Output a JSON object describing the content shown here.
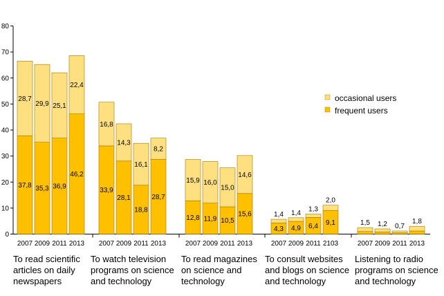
{
  "chart_data": {
    "type": "bar",
    "stacked": true,
    "ylim": [
      0,
      80
    ],
    "yticks": [
      0,
      10,
      20,
      30,
      40,
      50,
      60,
      70,
      80
    ],
    "grid": false,
    "legend_position": "right",
    "series": [
      {
        "name": "frequent users",
        "color": "#FFC000"
      },
      {
        "name": "occasional users",
        "color": "#FFE081"
      }
    ],
    "groups": [
      {
        "label": "To read scientific\narticles on daily\nnewspapers",
        "bars": [
          {
            "year": "2007",
            "frequent": 37.8,
            "occasional": 28.7,
            "frequent_label": "37,8",
            "occasional_label": "28,7"
          },
          {
            "year": "2009",
            "frequent": 35.3,
            "occasional": 29.9,
            "frequent_label": "35,3",
            "occasional_label": "29,9"
          },
          {
            "year": "2011",
            "frequent": 36.9,
            "occasional": 25.1,
            "frequent_label": "36,9",
            "occasional_label": "25,1"
          },
          {
            "year": "2013",
            "frequent": 46.2,
            "occasional": 22.4,
            "frequent_label": "46,2",
            "occasional_label": "22,4"
          }
        ]
      },
      {
        "label": "To watch television\nprograms on science\nand technology",
        "bars": [
          {
            "year": "2007",
            "frequent": 33.9,
            "occasional": 16.8,
            "frequent_label": "33,9",
            "occasional_label": "16,8"
          },
          {
            "year": "2009",
            "frequent": 28.1,
            "occasional": 14.3,
            "frequent_label": "28,1",
            "occasional_label": "14,3"
          },
          {
            "year": "2011",
            "frequent": 18.8,
            "occasional": 16.1,
            "frequent_label": "18,8",
            "occasional_label": "16,1"
          },
          {
            "year": "2013",
            "frequent": 28.7,
            "occasional": 8.2,
            "frequent_label": "28,7",
            "occasional_label": "8,2"
          }
        ]
      },
      {
        "label": "To read magazines\non science and\ntechnology",
        "bars": [
          {
            "year": "2007",
            "frequent": 12.8,
            "occasional": 15.9,
            "frequent_label": "12,8",
            "occasional_label": "15,9"
          },
          {
            "year": "2009",
            "frequent": 11.9,
            "occasional": 16.0,
            "frequent_label": "11,9",
            "occasional_label": "16,0"
          },
          {
            "year": "2011",
            "frequent": 10.5,
            "occasional": 15.0,
            "frequent_label": "10,5",
            "occasional_label": "15,0"
          },
          {
            "year": "2013",
            "frequent": 15.6,
            "occasional": 14.6,
            "frequent_label": "15,6",
            "occasional_label": "14,6"
          }
        ]
      },
      {
        "label": "To consult websites\nand blogs on science\nand technology",
        "bars": [
          {
            "year": "2007",
            "frequent": 4.3,
            "occasional": 1.4,
            "frequent_label": "4,3",
            "occasional_label": "1,4"
          },
          {
            "year": "2009",
            "frequent": 4.9,
            "occasional": 1.4,
            "frequent_label": "4,9",
            "occasional_label": "1,4"
          },
          {
            "year": "2011",
            "frequent": 6.4,
            "occasional": 1.3,
            "frequent_label": "6,4",
            "occasional_label": "1,3"
          },
          {
            "year": "2103",
            "frequent": 9.1,
            "occasional": 2.0,
            "frequent_label": "9,1",
            "occasional_label": "2,0"
          }
        ]
      },
      {
        "label": "Listening to radio\nprograms on science\nand technology",
        "bars": [
          {
            "year": "2007",
            "frequent": 1.0,
            "occasional": 1.5,
            "frequent_label": "",
            "occasional_label": "1,5"
          },
          {
            "year": "2009",
            "frequent": 0.8,
            "occasional": 1.2,
            "frequent_label": "",
            "occasional_label": "1,2"
          },
          {
            "year": "2011",
            "frequent": 0.5,
            "occasional": 0.7,
            "frequent_label": "",
            "occasional_label": "0,7"
          },
          {
            "year": "2013",
            "frequent": 1.2,
            "occasional": 1.8,
            "frequent_label": "",
            "occasional_label": "1,8"
          }
        ]
      }
    ]
  }
}
